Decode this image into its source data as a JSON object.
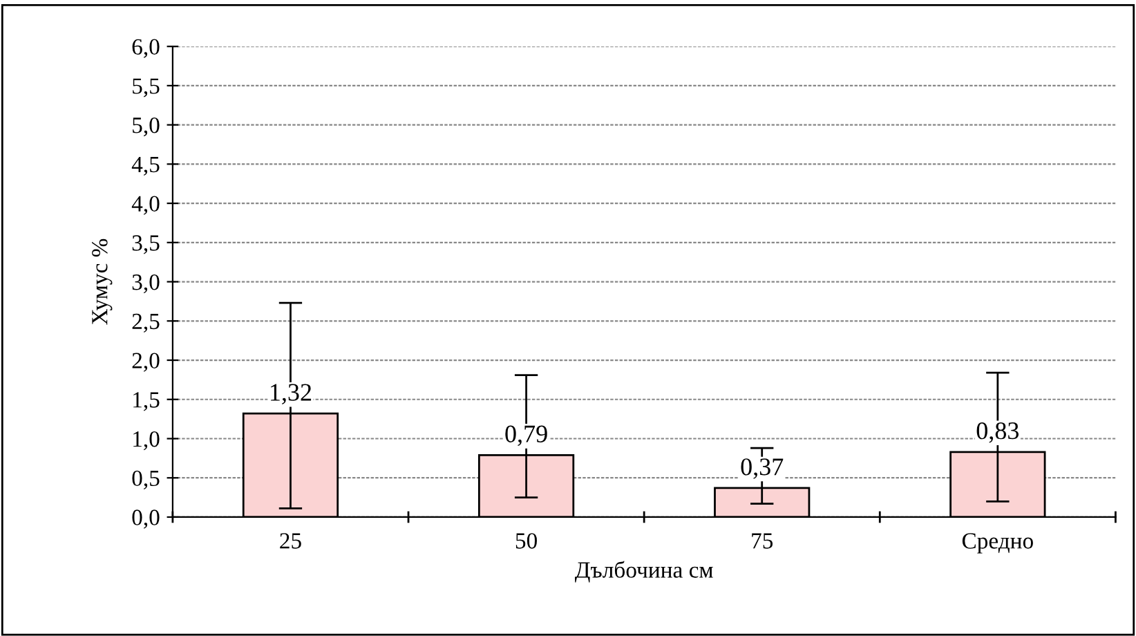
{
  "chart_data": {
    "type": "bar",
    "xlabel": "Дълбочина см",
    "ylabel": "Хумус %",
    "categories": [
      "25",
      "50",
      "75",
      "Средно"
    ],
    "values": [
      1.32,
      0.79,
      0.37,
      0.83
    ],
    "errors": [
      [
        0.11,
        2.73
      ],
      [
        0.25,
        1.81
      ],
      [
        0.17,
        0.88
      ],
      [
        0.2,
        1.84
      ]
    ],
    "value_labels": [
      "1,32",
      "0,79",
      "0,37",
      "0,83"
    ],
    "color": "#fbd3d3",
    "ylim": [
      0,
      6
    ],
    "yticks": [
      {
        "value": 0,
        "label": "0,0"
      },
      {
        "value": 0.5,
        "label": "0,5"
      },
      {
        "value": 1,
        "label": "1,0"
      },
      {
        "value": 1.5,
        "label": "1,5"
      },
      {
        "value": 2,
        "label": "2,0"
      },
      {
        "value": 2.5,
        "label": "2,5"
      },
      {
        "value": 3,
        "label": "3,0"
      },
      {
        "value": 3.5,
        "label": "3,5"
      },
      {
        "value": 4,
        "label": "4,0"
      },
      {
        "value": 4.5,
        "label": "4,5"
      },
      {
        "value": 5,
        "label": "5,0"
      },
      {
        "value": 5.5,
        "label": "5,5"
      },
      {
        "value": 6,
        "label": "6,0"
      }
    ],
    "grid": "y",
    "legend": false
  }
}
